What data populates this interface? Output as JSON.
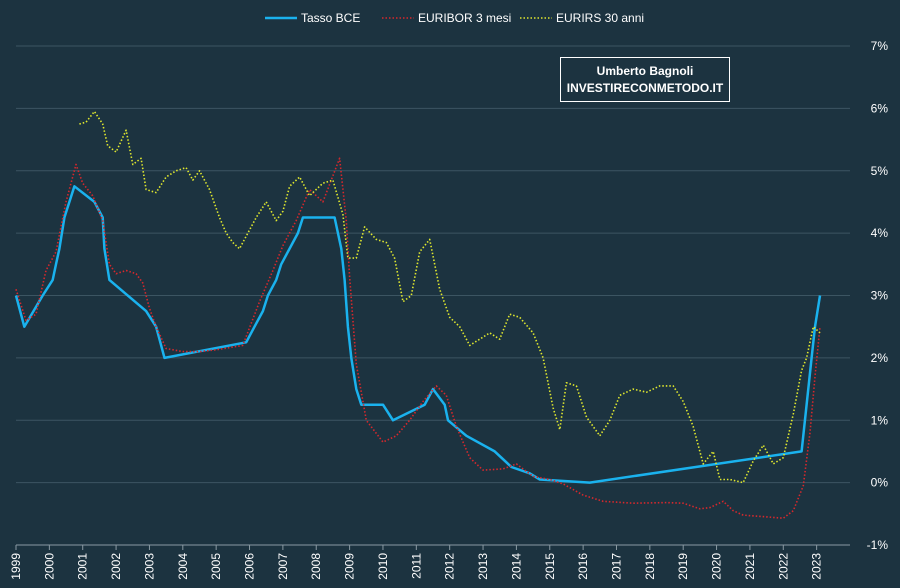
{
  "watermark": {
    "line1": "Umberto Bagnoli",
    "line2": "INVESTIRECONMETODO.IT"
  },
  "colors": {
    "background": "#1c3340",
    "grid": "#3c5562",
    "text": "#ffffff"
  },
  "chart_data": {
    "type": "line",
    "title": "",
    "xlabel": "",
    "ylabel": "",
    "xlim": [
      1999,
      2024
    ],
    "ylim": [
      -1,
      7
    ],
    "x_ticks": [
      "1999",
      "2000",
      "2001",
      "2002",
      "2003",
      "2004",
      "2005",
      "2006",
      "2007",
      "2008",
      "2009",
      "2010",
      "2011",
      "2012",
      "2013",
      "2014",
      "2015",
      "2016",
      "2017",
      "2018",
      "2019",
      "2020",
      "2021",
      "2022",
      "2023"
    ],
    "y_ticks": [
      "-1%",
      "0%",
      "1%",
      "2%",
      "3%",
      "4%",
      "5%",
      "6%",
      "7%"
    ],
    "legend_position": "top-center",
    "series": [
      {
        "name": "Tasso BCE",
        "color": "#1ab2ee",
        "style": "solid",
        "points": [
          [
            1999.0,
            3.0
          ],
          [
            1999.25,
            2.5
          ],
          [
            1999.8,
            3.0
          ],
          [
            2000.1,
            3.25
          ],
          [
            2000.2,
            3.5
          ],
          [
            2000.3,
            3.75
          ],
          [
            2000.45,
            4.25
          ],
          [
            2000.6,
            4.5
          ],
          [
            2000.75,
            4.75
          ],
          [
            2001.35,
            4.5
          ],
          [
            2001.6,
            4.25
          ],
          [
            2001.65,
            3.75
          ],
          [
            2001.8,
            3.25
          ],
          [
            2002.9,
            2.75
          ],
          [
            2003.2,
            2.5
          ],
          [
            2003.45,
            2.0
          ],
          [
            2005.9,
            2.25
          ],
          [
            2006.15,
            2.5
          ],
          [
            2006.4,
            2.75
          ],
          [
            2006.55,
            3.0
          ],
          [
            2006.8,
            3.25
          ],
          [
            2006.95,
            3.5
          ],
          [
            2007.45,
            4.0
          ],
          [
            2007.6,
            4.25
          ],
          [
            2008.55,
            4.25
          ],
          [
            2008.75,
            3.75
          ],
          [
            2008.85,
            3.25
          ],
          [
            2008.95,
            2.5
          ],
          [
            2009.05,
            2.0
          ],
          [
            2009.2,
            1.5
          ],
          [
            2009.35,
            1.25
          ],
          [
            2010.0,
            1.25
          ],
          [
            2010.3,
            1.0
          ],
          [
            2011.25,
            1.25
          ],
          [
            2011.5,
            1.5
          ],
          [
            2011.85,
            1.25
          ],
          [
            2011.95,
            1.0
          ],
          [
            2012.5,
            0.75
          ],
          [
            2013.35,
            0.5
          ],
          [
            2013.85,
            0.25
          ],
          [
            2014.4,
            0.15
          ],
          [
            2014.7,
            0.05
          ],
          [
            2016.2,
            0.0
          ],
          [
            2022.55,
            0.5
          ],
          [
            2022.7,
            1.25
          ],
          [
            2022.85,
            2.0
          ],
          [
            2022.95,
            2.5
          ],
          [
            2023.1,
            3.0
          ]
        ]
      },
      {
        "name": "EURIBOR 3 mesi",
        "color": "#d7282c",
        "style": "dotted",
        "points": [
          [
            1999.0,
            3.1
          ],
          [
            1999.3,
            2.6
          ],
          [
            1999.6,
            2.7
          ],
          [
            1999.9,
            3.4
          ],
          [
            2000.2,
            3.7
          ],
          [
            2000.5,
            4.5
          ],
          [
            2000.8,
            5.1
          ],
          [
            2001.0,
            4.8
          ],
          [
            2001.3,
            4.6
          ],
          [
            2001.6,
            4.2
          ],
          [
            2001.8,
            3.5
          ],
          [
            2002.0,
            3.35
          ],
          [
            2002.3,
            3.4
          ],
          [
            2002.6,
            3.35
          ],
          [
            2002.8,
            3.2
          ],
          [
            2003.0,
            2.8
          ],
          [
            2003.2,
            2.5
          ],
          [
            2003.5,
            2.15
          ],
          [
            2004.0,
            2.1
          ],
          [
            2004.5,
            2.1
          ],
          [
            2005.0,
            2.13
          ],
          [
            2005.8,
            2.2
          ],
          [
            2006.3,
            2.9
          ],
          [
            2006.7,
            3.4
          ],
          [
            2007.0,
            3.8
          ],
          [
            2007.4,
            4.2
          ],
          [
            2007.8,
            4.7
          ],
          [
            2008.2,
            4.5
          ],
          [
            2008.7,
            5.2
          ],
          [
            2008.9,
            4.2
          ],
          [
            2009.0,
            3.3
          ],
          [
            2009.2,
            1.9
          ],
          [
            2009.5,
            1.0
          ],
          [
            2010.0,
            0.65
          ],
          [
            2010.4,
            0.75
          ],
          [
            2010.8,
            1.0
          ],
          [
            2011.2,
            1.3
          ],
          [
            2011.6,
            1.55
          ],
          [
            2011.9,
            1.4
          ],
          [
            2012.2,
            0.9
          ],
          [
            2012.6,
            0.4
          ],
          [
            2013.0,
            0.2
          ],
          [
            2013.6,
            0.22
          ],
          [
            2014.0,
            0.3
          ],
          [
            2014.5,
            0.1
          ],
          [
            2015.0,
            0.05
          ],
          [
            2015.4,
            -0.02
          ],
          [
            2016.0,
            -0.2
          ],
          [
            2016.6,
            -0.3
          ],
          [
            2017.5,
            -0.33
          ],
          [
            2018.5,
            -0.32
          ],
          [
            2019.0,
            -0.33
          ],
          [
            2019.5,
            -0.42
          ],
          [
            2019.8,
            -0.4
          ],
          [
            2020.2,
            -0.3
          ],
          [
            2020.5,
            -0.45
          ],
          [
            2020.8,
            -0.52
          ],
          [
            2021.5,
            -0.55
          ],
          [
            2022.0,
            -0.57
          ],
          [
            2022.3,
            -0.45
          ],
          [
            2022.6,
            -0.05
          ],
          [
            2022.8,
            0.8
          ],
          [
            2022.95,
            1.7
          ],
          [
            2023.1,
            2.5
          ]
        ]
      },
      {
        "name": "EURIRS 30 anni",
        "color": "#e0e82e",
        "style": "dotted",
        "points": [
          [
            2000.9,
            5.75
          ],
          [
            2001.1,
            5.78
          ],
          [
            2001.35,
            5.95
          ],
          [
            2001.6,
            5.75
          ],
          [
            2001.75,
            5.4
          ],
          [
            2002.0,
            5.3
          ],
          [
            2002.3,
            5.65
          ],
          [
            2002.5,
            5.1
          ],
          [
            2002.75,
            5.2
          ],
          [
            2002.9,
            4.7
          ],
          [
            2003.2,
            4.65
          ],
          [
            2003.5,
            4.9
          ],
          [
            2003.8,
            5.0
          ],
          [
            2004.1,
            5.05
          ],
          [
            2004.3,
            4.85
          ],
          [
            2004.5,
            5.0
          ],
          [
            2004.8,
            4.7
          ],
          [
            2005.1,
            4.25
          ],
          [
            2005.3,
            4.0
          ],
          [
            2005.5,
            3.85
          ],
          [
            2005.7,
            3.75
          ],
          [
            2005.9,
            3.95
          ],
          [
            2006.2,
            4.25
          ],
          [
            2006.5,
            4.5
          ],
          [
            2006.8,
            4.2
          ],
          [
            2007.0,
            4.35
          ],
          [
            2007.2,
            4.75
          ],
          [
            2007.5,
            4.9
          ],
          [
            2007.8,
            4.6
          ],
          [
            2008.2,
            4.8
          ],
          [
            2008.5,
            4.85
          ],
          [
            2008.8,
            4.3
          ],
          [
            2008.95,
            3.6
          ],
          [
            2009.2,
            3.6
          ],
          [
            2009.45,
            4.1
          ],
          [
            2009.8,
            3.9
          ],
          [
            2010.1,
            3.85
          ],
          [
            2010.35,
            3.6
          ],
          [
            2010.6,
            2.9
          ],
          [
            2010.85,
            3.0
          ],
          [
            2011.1,
            3.7
          ],
          [
            2011.4,
            3.9
          ],
          [
            2011.7,
            3.1
          ],
          [
            2012.0,
            2.65
          ],
          [
            2012.3,
            2.5
          ],
          [
            2012.6,
            2.2
          ],
          [
            2012.9,
            2.3
          ],
          [
            2013.2,
            2.4
          ],
          [
            2013.5,
            2.3
          ],
          [
            2013.8,
            2.7
          ],
          [
            2014.1,
            2.65
          ],
          [
            2014.5,
            2.4
          ],
          [
            2014.8,
            2.0
          ],
          [
            2015.1,
            1.2
          ],
          [
            2015.3,
            0.85
          ],
          [
            2015.5,
            1.6
          ],
          [
            2015.8,
            1.55
          ],
          [
            2016.1,
            1.05
          ],
          [
            2016.5,
            0.75
          ],
          [
            2016.8,
            1.0
          ],
          [
            2017.1,
            1.4
          ],
          [
            2017.5,
            1.5
          ],
          [
            2017.9,
            1.45
          ],
          [
            2018.3,
            1.55
          ],
          [
            2018.7,
            1.55
          ],
          [
            2019.0,
            1.3
          ],
          [
            2019.3,
            0.9
          ],
          [
            2019.6,
            0.3
          ],
          [
            2019.9,
            0.5
          ],
          [
            2020.1,
            0.05
          ],
          [
            2020.4,
            0.05
          ],
          [
            2020.8,
            0.0
          ],
          [
            2021.1,
            0.35
          ],
          [
            2021.4,
            0.6
          ],
          [
            2021.7,
            0.3
          ],
          [
            2022.0,
            0.4
          ],
          [
            2022.3,
            1.1
          ],
          [
            2022.55,
            1.8
          ],
          [
            2022.7,
            2.0
          ],
          [
            2022.9,
            2.5
          ],
          [
            2023.1,
            2.4
          ]
        ]
      }
    ]
  }
}
